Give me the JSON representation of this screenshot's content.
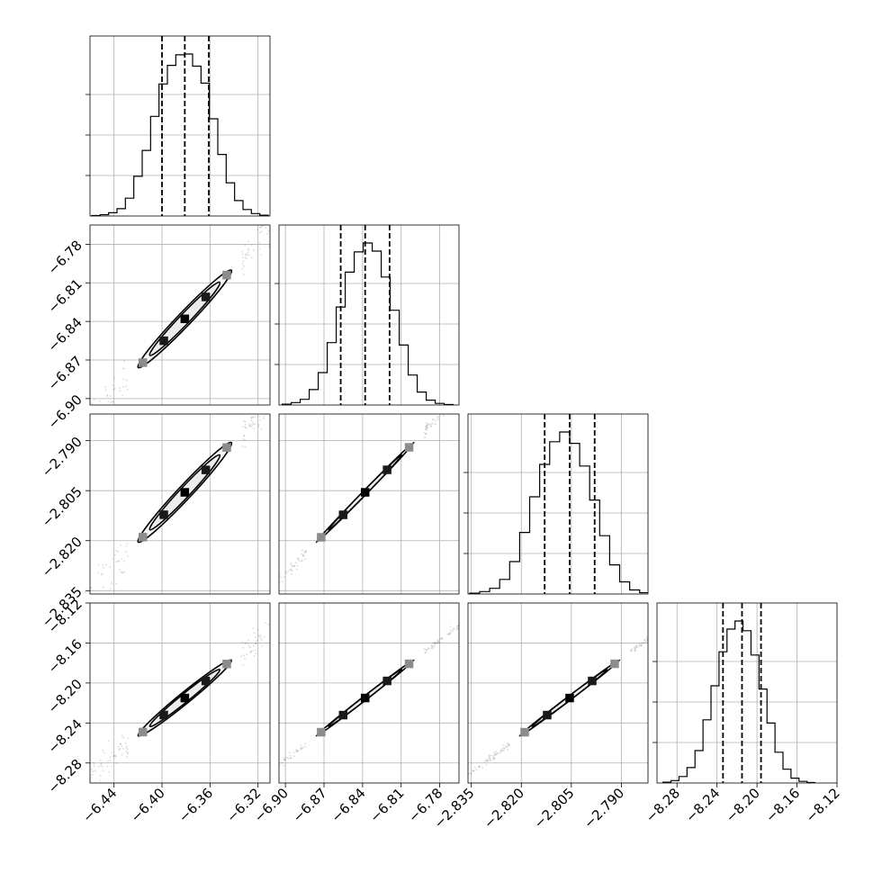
{
  "chart_data": {
    "type": "corner",
    "grid": true,
    "colors": {
      "lines": "#000000",
      "grid": "#b0b0b0",
      "scatter": "#555555",
      "density_light": "#8c8c8c",
      "density_dark": "#000000"
    },
    "parameters": [
      {
        "range": [
          -6.46,
          -6.31
        ],
        "ticks": [
          -6.44,
          -6.4,
          -6.36,
          -6.32
        ],
        "tick_labels": [
          "−6.44",
          "−6.40",
          "−6.36",
          "−6.32"
        ],
        "quantiles": [
          -6.4,
          -6.381,
          -6.361
        ],
        "histogram": [
          {
            "x": -6.455,
            "count": 3
          },
          {
            "x": -6.448,
            "count": 8
          },
          {
            "x": -6.441,
            "count": 20
          },
          {
            "x": -6.434,
            "count": 45
          },
          {
            "x": -6.427,
            "count": 110
          },
          {
            "x": -6.42,
            "count": 245
          },
          {
            "x": -6.413,
            "count": 405
          },
          {
            "x": -6.406,
            "count": 615
          },
          {
            "x": -6.399,
            "count": 815
          },
          {
            "x": -6.392,
            "count": 930
          },
          {
            "x": -6.385,
            "count": 995
          },
          {
            "x": -6.378,
            "count": 1000
          },
          {
            "x": -6.371,
            "count": 925
          },
          {
            "x": -6.364,
            "count": 820
          },
          {
            "x": -6.357,
            "count": 600
          },
          {
            "x": -6.35,
            "count": 380
          },
          {
            "x": -6.343,
            "count": 205
          },
          {
            "x": -6.336,
            "count": 95
          },
          {
            "x": -6.329,
            "count": 40
          },
          {
            "x": -6.322,
            "count": 15
          },
          {
            "x": -6.315,
            "count": 5
          }
        ]
      },
      {
        "range": [
          -6.905,
          -6.765
        ],
        "ticks": [
          -6.9,
          -6.87,
          -6.84,
          -6.81,
          -6.78
        ],
        "tick_labels": [
          "−6.90",
          "−6.87",
          "−6.84",
          "−6.81",
          "−6.78"
        ],
        "quantiles": [
          -6.857,
          -6.838,
          -6.819
        ],
        "histogram": [
          {
            "x": -6.899,
            "count": 5
          },
          {
            "x": -6.892,
            "count": 15
          },
          {
            "x": -6.885,
            "count": 35
          },
          {
            "x": -6.878,
            "count": 95
          },
          {
            "x": -6.871,
            "count": 200
          },
          {
            "x": -6.864,
            "count": 385
          },
          {
            "x": -6.857,
            "count": 605
          },
          {
            "x": -6.85,
            "count": 820
          },
          {
            "x": -6.843,
            "count": 945
          },
          {
            "x": -6.836,
            "count": 1000
          },
          {
            "x": -6.829,
            "count": 950
          },
          {
            "x": -6.822,
            "count": 790
          },
          {
            "x": -6.815,
            "count": 585
          },
          {
            "x": -6.808,
            "count": 370
          },
          {
            "x": -6.801,
            "count": 185
          },
          {
            "x": -6.794,
            "count": 80
          },
          {
            "x": -6.787,
            "count": 30
          },
          {
            "x": -6.78,
            "count": 10
          },
          {
            "x": -6.773,
            "count": 3
          }
        ]
      },
      {
        "range": [
          -2.836,
          -2.782
        ],
        "ticks": [
          -2.835,
          -2.82,
          -2.805,
          -2.79
        ],
        "tick_labels": [
          "−2.835",
          "−2.820",
          "−2.805",
          "−2.790"
        ],
        "quantiles": [
          -2.813,
          -2.8055,
          -2.798
        ],
        "histogram": [
          {
            "x": -2.834,
            "count": 5
          },
          {
            "x": -2.831,
            "count": 15
          },
          {
            "x": -2.828,
            "count": 35
          },
          {
            "x": -2.825,
            "count": 90
          },
          {
            "x": -2.822,
            "count": 200
          },
          {
            "x": -2.819,
            "count": 380
          },
          {
            "x": -2.816,
            "count": 600
          },
          {
            "x": -2.813,
            "count": 800
          },
          {
            "x": -2.81,
            "count": 940
          },
          {
            "x": -2.807,
            "count": 1000
          },
          {
            "x": -2.804,
            "count": 930
          },
          {
            "x": -2.801,
            "count": 790
          },
          {
            "x": -2.798,
            "count": 580
          },
          {
            "x": -2.795,
            "count": 360
          },
          {
            "x": -2.792,
            "count": 180
          },
          {
            "x": -2.789,
            "count": 75
          },
          {
            "x": -2.786,
            "count": 25
          },
          {
            "x": -2.783,
            "count": 8
          }
        ]
      },
      {
        "range": [
          -8.3,
          -8.12
        ],
        "ticks": [
          -8.28,
          -8.24,
          -8.2,
          -8.16,
          -8.12
        ],
        "tick_labels": [
          "−8.28",
          "−8.24",
          "−8.20",
          "−8.16",
          "−8.12"
        ],
        "quantiles": [
          -8.234,
          -8.215,
          -8.196
        ],
        "histogram": [
          {
            "x": -8.29,
            "count": 5
          },
          {
            "x": -8.282,
            "count": 15
          },
          {
            "x": -8.274,
            "count": 40
          },
          {
            "x": -8.266,
            "count": 95
          },
          {
            "x": -8.258,
            "count": 200
          },
          {
            "x": -8.25,
            "count": 390
          },
          {
            "x": -8.242,
            "count": 600
          },
          {
            "x": -8.234,
            "count": 810
          },
          {
            "x": -8.226,
            "count": 950
          },
          {
            "x": -8.218,
            "count": 1000
          },
          {
            "x": -8.21,
            "count": 940
          },
          {
            "x": -8.202,
            "count": 790
          },
          {
            "x": -8.194,
            "count": 580
          },
          {
            "x": -8.186,
            "count": 370
          },
          {
            "x": -8.178,
            "count": 190
          },
          {
            "x": -8.17,
            "count": 85
          },
          {
            "x": -8.162,
            "count": 30
          },
          {
            "x": -8.154,
            "count": 10
          },
          {
            "x": -8.146,
            "count": 3
          }
        ]
      }
    ],
    "pairs": [
      {
        "row": 1,
        "col": 0,
        "correlation": 0.985
      },
      {
        "row": 2,
        "col": 0,
        "correlation": 0.985
      },
      {
        "row": 2,
        "col": 1,
        "correlation": 0.999
      },
      {
        "row": 3,
        "col": 0,
        "correlation": 0.985
      },
      {
        "row": 3,
        "col": 1,
        "correlation": 0.999
      },
      {
        "row": 3,
        "col": 2,
        "correlation": 0.999
      }
    ]
  }
}
